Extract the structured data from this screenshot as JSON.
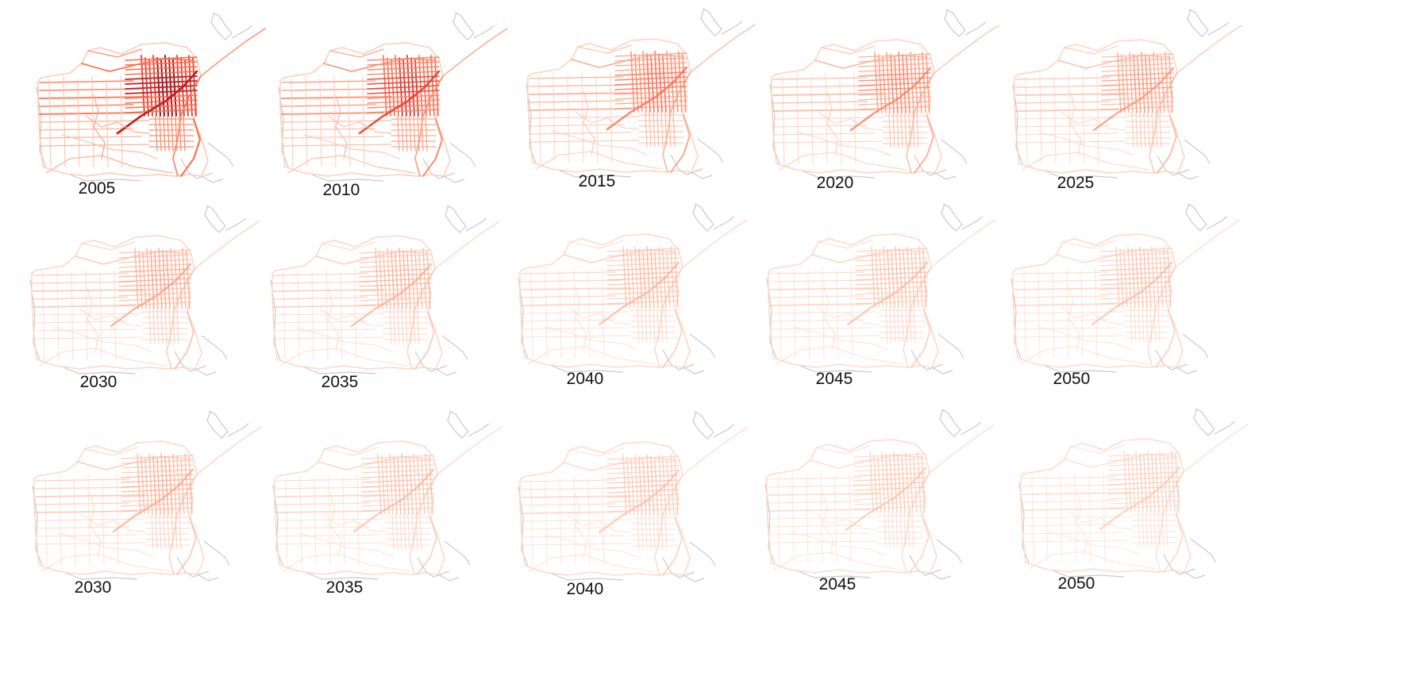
{
  "figure": {
    "panels": [
      {
        "year": "2005",
        "intensity": 1.0
      },
      {
        "year": "2010",
        "intensity": 0.82
      },
      {
        "year": "2015",
        "intensity": 0.64
      },
      {
        "year": "2020",
        "intensity": 0.56
      },
      {
        "year": "2025",
        "intensity": 0.48
      },
      {
        "year": "2030",
        "intensity": 0.42
      },
      {
        "year": "2035",
        "intensity": 0.36
      },
      {
        "year": "2040",
        "intensity": 0.33
      },
      {
        "year": "2045",
        "intensity": 0.3
      },
      {
        "year": "2050",
        "intensity": 0.28
      },
      {
        "year": "2030",
        "intensity": 0.38
      },
      {
        "year": "2035",
        "intensity": 0.3
      },
      {
        "year": "2040",
        "intensity": 0.27
      },
      {
        "year": "2045",
        "intensity": 0.25
      },
      {
        "year": "2050",
        "intensity": 0.22
      }
    ]
  }
}
